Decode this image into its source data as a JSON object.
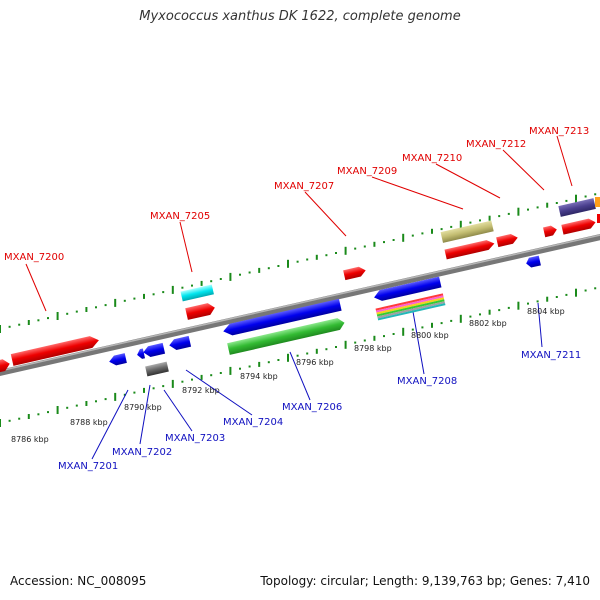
{
  "title": "Myxococcus xanthus DK 1622, complete genome",
  "accession_label": "Accession: NC_008095",
  "summary_label": "Topology: circular; Length: 9,139,763 bp; Genes: 7,410",
  "colors": {
    "forward_label": "#e00000",
    "reverse_label": "#1010c0",
    "tick": "#1a8a1a",
    "axis": "#888888",
    "forward_gene": "#ff0000",
    "reverse_gene": "#0000ee"
  },
  "scale_labels": [
    "8786 kbp",
    "8788 kbp",
    "8790 kbp",
    "8792 kbp",
    "8794 kbp",
    "8796 kbp",
    "8798 kbp",
    "8800 kbp",
    "8802 kbp",
    "8804 kbp"
  ],
  "forward_genes": [
    "MXAN_7200",
    "MXAN_7205",
    "MXAN_7207",
    "MXAN_7209",
    "MXAN_7210",
    "MXAN_7212",
    "MXAN_7213"
  ],
  "reverse_genes": [
    "MXAN_7201",
    "MXAN_7202",
    "MXAN_7203",
    "MXAN_7204",
    "MXAN_7206",
    "MXAN_7208",
    "MXAN_7211"
  ]
}
